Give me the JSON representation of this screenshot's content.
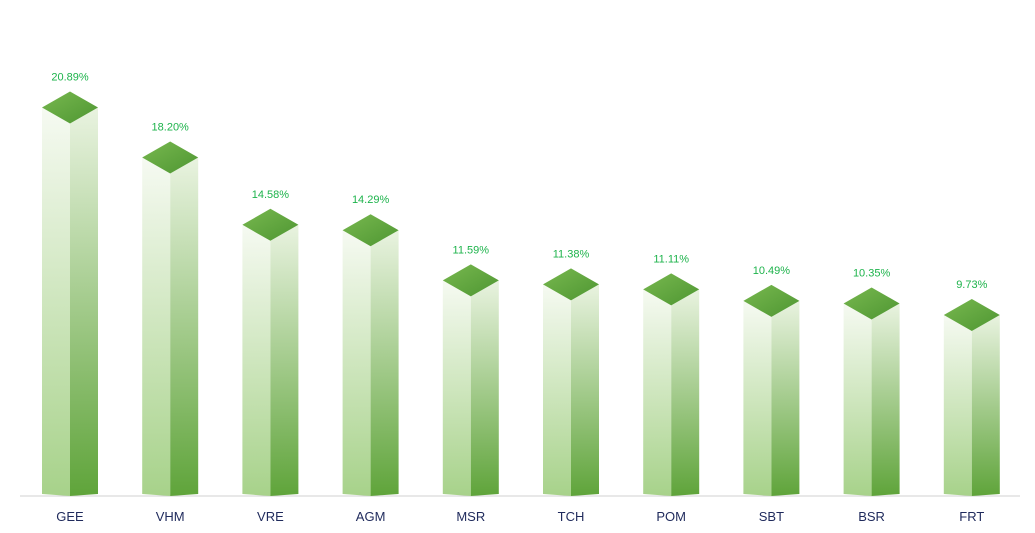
{
  "colors": {
    "bar_top": "#4e9632",
    "bar_top_light": "#78b84f",
    "bar_front_top": "#f6faf2",
    "bar_front_bottom": "#a7d28a",
    "bar_side_top": "#e9f3e0",
    "bar_side_bottom": "#5fa43a",
    "value_label": "#1db34b",
    "category_label": "#1f2a5c",
    "axis_line": "#d0d0d0"
  },
  "chart_data": {
    "type": "bar",
    "style": "3d-column",
    "title": "",
    "xlabel": "",
    "ylabel": "",
    "ylim": [
      0,
      22.5
    ],
    "grid": false,
    "legend": "none",
    "categories": [
      "GEE",
      "VHM",
      "VRE",
      "AGM",
      "MSR",
      "TCH",
      "POM",
      "SBT",
      "BSR",
      "FRT"
    ],
    "values": [
      20.89,
      18.2,
      14.58,
      14.29,
      11.59,
      11.38,
      11.11,
      10.49,
      10.35,
      9.73
    ],
    "value_labels": [
      "20.89%",
      "18.20%",
      "14.58%",
      "14.29%",
      "11.59%",
      "11.38%",
      "11.11%",
      "10.49%",
      "10.35%",
      "9.73%"
    ]
  }
}
